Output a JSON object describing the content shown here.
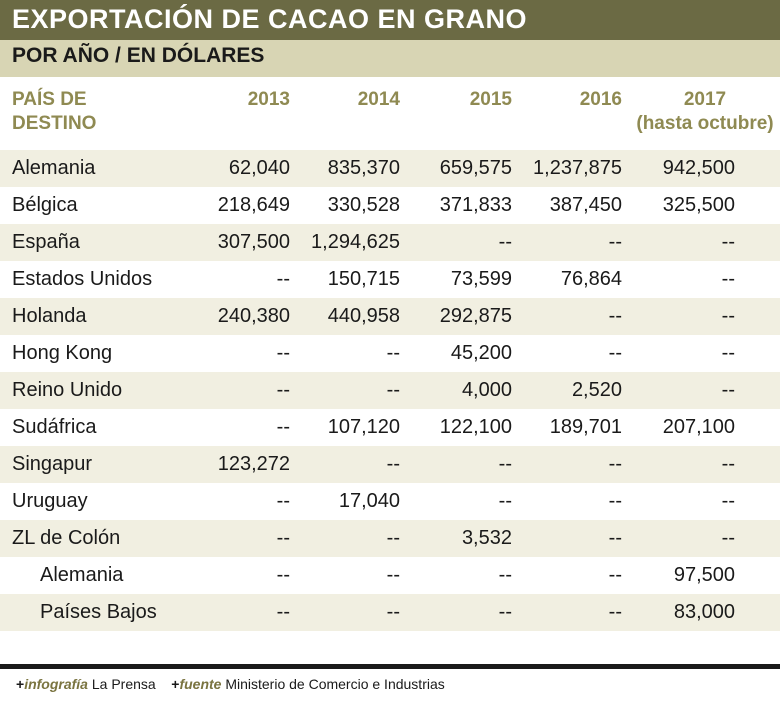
{
  "title": "EXPORTACIÓN DE CACAO EN GRANO",
  "subtitle": "POR AÑO / EN DÓLARES",
  "colors": {
    "title_bg": "#6b6a44",
    "subtitle_bg": "#d8d5b4",
    "stripe": "#f1efe1",
    "header_text": "#8f8a52"
  },
  "header": {
    "country_line1": "PAÍS DE",
    "country_line2": "DESTINO",
    "years": [
      "2013",
      "2014",
      "2015",
      "2016",
      "2017"
    ],
    "year_note": "(hasta octubre)"
  },
  "chart_data": {
    "type": "table",
    "title": "EXPORTACIÓN DE CACAO EN GRANO",
    "subtitle": "POR AÑO / EN DÓLARES",
    "columns": [
      "PAÍS DE DESTINO",
      "2013",
      "2014",
      "2015",
      "2016",
      "2017 (hasta octubre)"
    ],
    "rows": [
      {
        "country": "Alemania",
        "values": [
          "62,040",
          "835,370",
          "659,575",
          "1,237,875",
          "942,500"
        ]
      },
      {
        "country": "Bélgica",
        "values": [
          "218,649",
          "330,528",
          "371,833",
          "387,450",
          "325,500"
        ]
      },
      {
        "country": "España",
        "values": [
          "307,500",
          "1,294,625",
          "--",
          "--",
          "--"
        ]
      },
      {
        "country": "Estados Unidos",
        "values": [
          "--",
          "150,715",
          "73,599",
          "76,864",
          "--"
        ]
      },
      {
        "country": "Holanda",
        "values": [
          "240,380",
          "440,958",
          "292,875",
          "--",
          "--"
        ]
      },
      {
        "country": "Hong Kong",
        "values": [
          "--",
          "--",
          "45,200",
          "--",
          "--"
        ]
      },
      {
        "country": "Reino Unido",
        "values": [
          "--",
          "--",
          "4,000",
          "2,520",
          "--"
        ]
      },
      {
        "country": "Sudáfrica",
        "values": [
          "--",
          "107,120",
          "122,100",
          "189,701",
          "207,100"
        ]
      },
      {
        "country": "Singapur",
        "values": [
          "123,272",
          "--",
          "--",
          "--",
          "--"
        ]
      },
      {
        "country": "Uruguay",
        "values": [
          "--",
          "17,040",
          "--",
          "--",
          "--"
        ]
      },
      {
        "country": "ZL de Colón",
        "values": [
          "--",
          "--",
          "3,532",
          "--",
          "--"
        ]
      },
      {
        "country": "Alemania",
        "sub": true,
        "values": [
          "--",
          "--",
          "--",
          "--",
          "97,500"
        ]
      },
      {
        "country": "Países Bajos",
        "sub": true,
        "values": [
          "--",
          "--",
          "--",
          "--",
          "83,000"
        ]
      }
    ]
  },
  "credits": {
    "infografia_label": "infografía",
    "infografia_value": "La Prensa",
    "fuente_label": "fuente",
    "fuente_value": "Ministerio de Comercio e Industrias",
    "plus": "+"
  }
}
